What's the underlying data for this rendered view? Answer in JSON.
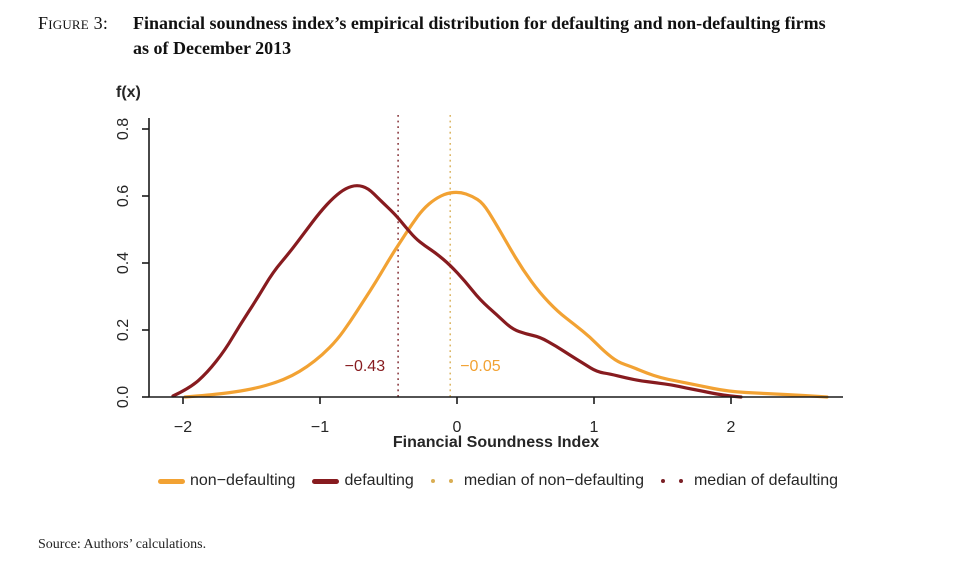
{
  "figure": {
    "label": "Figure 3:",
    "title_line1": "Financial soundness index’s empirical distribution for defaulting and non-defaulting firms",
    "title_line2": "as of December 2013"
  },
  "source": "Source: Authors’ calculations.",
  "legend": [
    {
      "name": "non-defaulting",
      "label": "non−defaulting",
      "type": "line",
      "color": "#F2A233"
    },
    {
      "name": "defaulting",
      "label": "defaulting",
      "type": "line",
      "color": "#871B1F"
    },
    {
      "name": "median-of-non-defaulting",
      "label": "median of non−defaulting",
      "type": "dots",
      "color": "#D9AE54"
    },
    {
      "name": "median-of-defaulting",
      "label": "median of defaulting",
      "type": "dots",
      "color": "#7B2026"
    }
  ],
  "chart_data": {
    "type": "line",
    "subtype": "kernel-density",
    "title": "Financial soundness index’s empirical distribution for defaulting and non-defaulting firms as of December 2013",
    "xlabel": "Financial Soundness Index",
    "ylabel": "f(x)",
    "xlim": [
      -2.25,
      2.82
    ],
    "ylim": [
      0,
      0.84
    ],
    "x_tick_values": [
      -2,
      -1,
      0,
      1,
      2
    ],
    "x_tick_labels": [
      "−2",
      "−1",
      "0",
      "1",
      "2"
    ],
    "y_tick_values": [
      0.0,
      0.2,
      0.4,
      0.6,
      0.8
    ],
    "y_tick_labels": [
      "0.0",
      "0.2",
      "0.4",
      "0.6",
      "0.8"
    ],
    "grid": false,
    "legend_position": "bottom",
    "series": [
      {
        "name": "non-defaulting",
        "color": "#F2A233",
        "points": [
          [
            -1.985,
            0.0
          ],
          [
            -1.803,
            0.006
          ],
          [
            -1.62,
            0.015
          ],
          [
            -1.46,
            0.027
          ],
          [
            -1.328,
            0.042
          ],
          [
            -1.204,
            0.063
          ],
          [
            -1.095,
            0.09
          ],
          [
            -0.985,
            0.125
          ],
          [
            -0.876,
            0.17
          ],
          [
            -0.781,
            0.224
          ],
          [
            -0.686,
            0.284
          ],
          [
            -0.584,
            0.349
          ],
          [
            -0.489,
            0.415
          ],
          [
            -0.409,
            0.466
          ],
          [
            -0.328,
            0.516
          ],
          [
            -0.248,
            0.561
          ],
          [
            -0.161,
            0.591
          ],
          [
            -0.073,
            0.609
          ],
          [
            0.022,
            0.612
          ],
          [
            0.109,
            0.6
          ],
          [
            0.19,
            0.579
          ],
          [
            0.277,
            0.522
          ],
          [
            0.372,
            0.454
          ],
          [
            0.482,
            0.379
          ],
          [
            0.606,
            0.31
          ],
          [
            0.737,
            0.254
          ],
          [
            0.861,
            0.215
          ],
          [
            0.971,
            0.179
          ],
          [
            1.08,
            0.134
          ],
          [
            1.175,
            0.104
          ],
          [
            1.277,
            0.09
          ],
          [
            1.38,
            0.072
          ],
          [
            1.489,
            0.057
          ],
          [
            1.599,
            0.048
          ],
          [
            1.708,
            0.039
          ],
          [
            1.818,
            0.03
          ],
          [
            1.927,
            0.021
          ],
          [
            2.044,
            0.015
          ],
          [
            2.175,
            0.012
          ],
          [
            2.321,
            0.009
          ],
          [
            2.467,
            0.006
          ],
          [
            2.591,
            0.003
          ],
          [
            2.701,
            0.0
          ]
        ]
      },
      {
        "name": "defaulting",
        "color": "#871B1F",
        "points": [
          [
            -2.073,
            0.003
          ],
          [
            -1.949,
            0.027
          ],
          [
            -1.825,
            0.072
          ],
          [
            -1.693,
            0.14
          ],
          [
            -1.584,
            0.215
          ],
          [
            -1.46,
            0.293
          ],
          [
            -1.343,
            0.373
          ],
          [
            -1.219,
            0.433
          ],
          [
            -1.109,
            0.493
          ],
          [
            -1.0,
            0.552
          ],
          [
            -0.898,
            0.597
          ],
          [
            -0.81,
            0.624
          ],
          [
            -0.73,
            0.633
          ],
          [
            -0.65,
            0.624
          ],
          [
            -0.562,
            0.588
          ],
          [
            -0.453,
            0.546
          ],
          [
            -0.38,
            0.51
          ],
          [
            -0.307,
            0.475
          ],
          [
            -0.234,
            0.451
          ],
          [
            -0.146,
            0.427
          ],
          [
            -0.051,
            0.394
          ],
          [
            0.058,
            0.346
          ],
          [
            0.168,
            0.29
          ],
          [
            0.292,
            0.245
          ],
          [
            0.401,
            0.203
          ],
          [
            0.504,
            0.188
          ],
          [
            0.606,
            0.179
          ],
          [
            0.723,
            0.152
          ],
          [
            0.825,
            0.125
          ],
          [
            0.927,
            0.099
          ],
          [
            1.022,
            0.075
          ],
          [
            1.117,
            0.069
          ],
          [
            1.234,
            0.057
          ],
          [
            1.343,
            0.048
          ],
          [
            1.46,
            0.042
          ],
          [
            1.569,
            0.036
          ],
          [
            1.672,
            0.027
          ],
          [
            1.788,
            0.018
          ],
          [
            1.891,
            0.009
          ],
          [
            1.993,
            0.003
          ],
          [
            2.073,
            0.0
          ]
        ]
      }
    ],
    "medians": [
      {
        "name": "median-of-defaulting",
        "series": "defaulting",
        "value": -0.43,
        "label": "−0.43",
        "line_color": "#7B2026",
        "label_color": "#871B1F",
        "label_side": "left"
      },
      {
        "name": "median-of-non-defaulting",
        "series": "non-defaulting",
        "value": -0.05,
        "label": "−0.05",
        "line_color": "#D9AE54",
        "label_color": "#F2A233",
        "label_side": "right"
      }
    ]
  }
}
